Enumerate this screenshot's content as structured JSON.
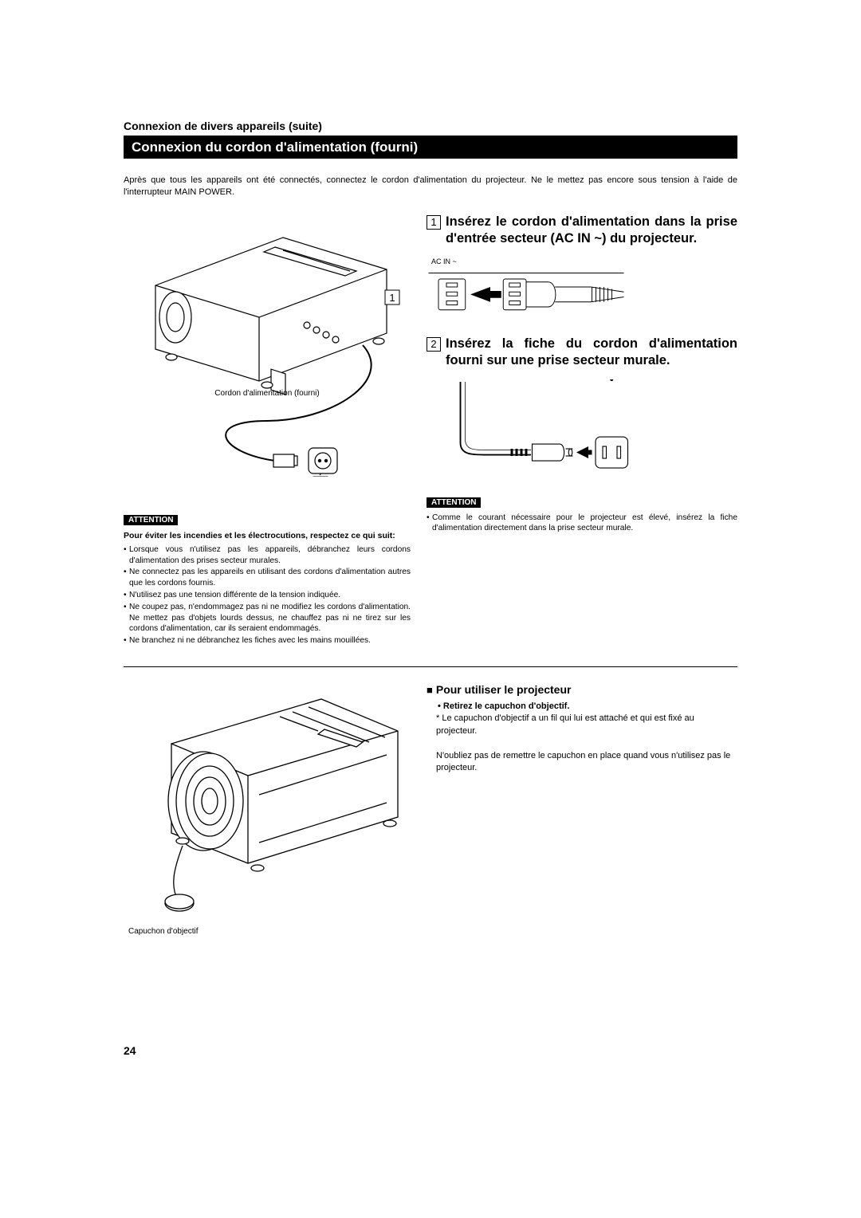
{
  "section_label": "Connexion de divers appareils (suite)",
  "title_bar": "Connexion du cordon d'alimentation (fourni)",
  "intro": "Après que tous les appareils ont été connectés, connectez le cordon d'alimentation du projecteur. Ne le mettez pas encore sous tension à l'aide de l'interrupteur MAIN POWER.",
  "figure1_caption": "Cordon d'alimentation (fourni)",
  "step1_num": "1",
  "step1_text": "Insérez le cordon d'alimentation dans la prise d'entrée secteur (AC IN ~) du projecteur.",
  "ac_in_label": "AC IN ~",
  "step2_num": "2",
  "step2_text": "Insérez la fiche du cordon d'alimentation fourni sur une prise secteur murale.",
  "attention_label": "ATTENTION",
  "attention1_lead": "Pour éviter les incendies et les électrocutions, respectez ce qui suit:",
  "attention1_items": [
    "Lorsque vous n'utilisez pas les appareils, débranchez leurs cordons d'alimentation des prises secteur murales.",
    "Ne connectez pas les appareils en utilisant des cordons d'alimentation autres que les cordons fournis.",
    "N'utilisez pas une tension différente de la tension indiquée.",
    "Ne coupez pas, n'endommagez pas ni ne modifiez les cordons d'alimentation. Ne mettez pas d'objets lourds dessus, ne chauffez pas ni ne tirez sur les cordons d'alimentation, car ils seraient endommagés.",
    "Ne branchez ni ne débranchez les fiches avec les mains mouillées."
  ],
  "attention2_items": [
    "Comme le courant nécessaire pour le projecteur est élevé, insérez la fiche d'alimentation directement dans la prise secteur murale."
  ],
  "lower_heading": "Pour utiliser le projecteur",
  "lower_instr_bold": "• Retirez le capuchon d'objectif.",
  "lower_instr_1": "* Le capuchon d'objectif a un fil qui lui est attaché et qui est fixé au projecteur.",
  "lower_instr_2": "N'oubliez pas de remettre le capuchon en place quand vous n'utilisez pas le projecteur.",
  "lens_cap_label": "Capuchon d'objectif",
  "page_number": "24",
  "colors": {
    "bg": "#ffffff",
    "text": "#000000",
    "bar_bg": "#000000",
    "bar_text": "#ffffff"
  },
  "callout_1": "1",
  "callout_2": "2"
}
